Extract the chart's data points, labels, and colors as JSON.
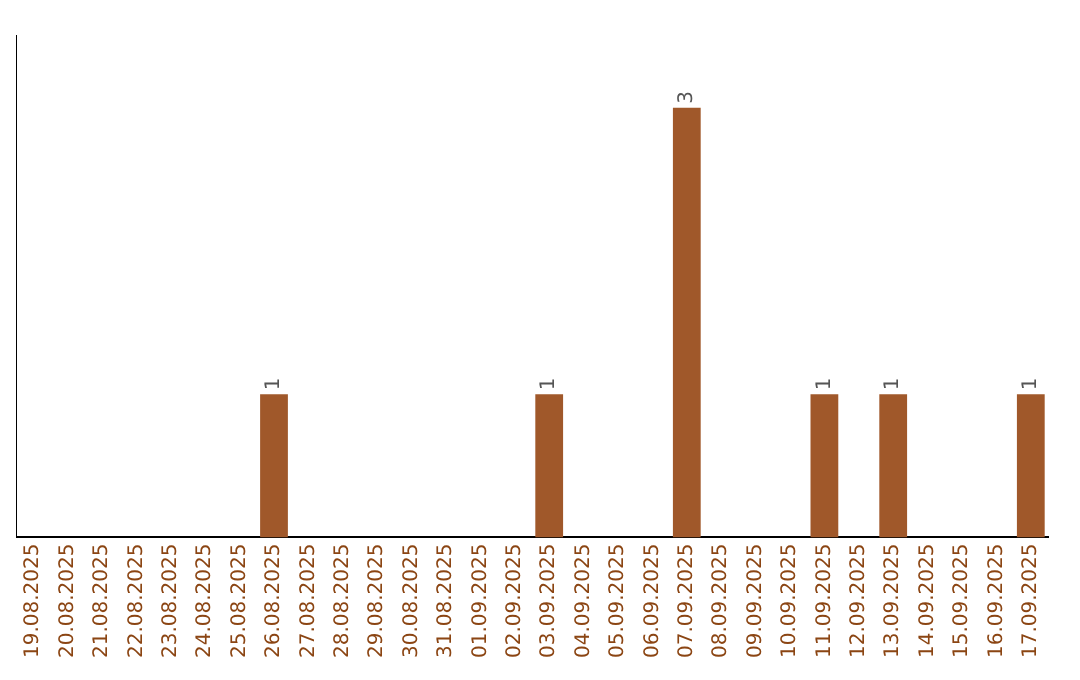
{
  "chart_data": {
    "type": "bar",
    "categories": [
      "19.08.2025",
      "20.08.2025",
      "21.08.2025",
      "22.08.2025",
      "23.08.2025",
      "24.08.2025",
      "25.08.2025",
      "26.08.2025",
      "27.08.2025",
      "28.08.2025",
      "29.08.2025",
      "30.08.2025",
      "31.08.2025",
      "01.09.2025",
      "02.09.2025",
      "03.09.2025",
      "04.09.2025",
      "05.09.2025",
      "06.09.2025",
      "07.09.2025",
      "08.09.2025",
      "09.09.2025",
      "10.09.2025",
      "11.09.2025",
      "12.09.2025",
      "13.09.2025",
      "14.09.2025",
      "15.09.2025",
      "16.09.2025",
      "17.09.2025"
    ],
    "values": [
      0,
      0,
      0,
      0,
      0,
      0,
      0,
      1,
      0,
      0,
      0,
      0,
      0,
      0,
      0,
      1,
      0,
      0,
      0,
      3,
      0,
      0,
      0,
      1,
      0,
      1,
      0,
      0,
      0,
      1
    ],
    "value_labels": [
      null,
      null,
      null,
      null,
      null,
      null,
      null,
      "1",
      null,
      null,
      null,
      null,
      null,
      null,
      null,
      "1",
      null,
      null,
      null,
      "3",
      null,
      null,
      null,
      "1",
      null,
      "1",
      null,
      null,
      null,
      "1"
    ],
    "color": "#a0582a",
    "grid": false,
    "legend": false,
    "tick_labels": "x"
  }
}
